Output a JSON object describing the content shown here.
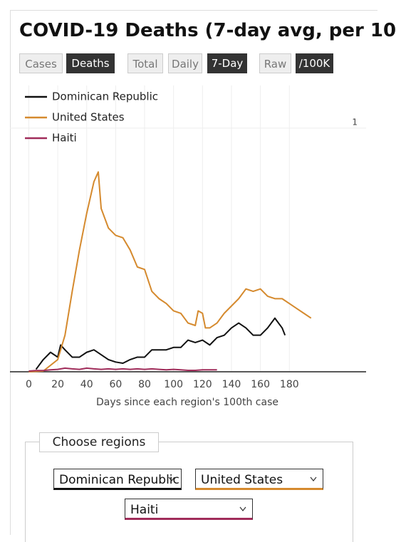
{
  "ui": {
    "buttons": [
      {
        "label": "Cases",
        "active": false
      },
      {
        "label": "Deaths",
        "active": true
      },
      {
        "label": "Total",
        "active": false
      },
      {
        "label": "Daily",
        "active": false
      },
      {
        "label": "7-Day",
        "active": true
      },
      {
        "label": "Raw",
        "active": false
      },
      {
        "label": "/100K",
        "active": true
      }
    ],
    "regions_title": "Choose regions"
  },
  "chart_data": {
    "type": "line",
    "title": "COVID-19 Deaths (7-day avg, per 10",
    "x_label": "Days since each region's 100th case",
    "xlim": [
      -13,
      233
    ],
    "xticks": [
      0,
      20,
      40,
      60,
      80,
      100,
      120,
      140,
      160,
      180
    ],
    "ylim": [
      0,
      1.175
    ],
    "yticks": [
      1
    ],
    "grid": true,
    "legend": "top-left",
    "series": [
      {
        "name": "Dominican Republic",
        "color": "#111111",
        "x": [
          5,
          10,
          15,
          20,
          22,
          25,
          30,
          35,
          40,
          45,
          50,
          55,
          60,
          65,
          70,
          75,
          80,
          85,
          90,
          95,
          100,
          105,
          110,
          115,
          120,
          125,
          130,
          135,
          140,
          145,
          150,
          155,
          160,
          165,
          170,
          175,
          177
        ],
        "values": [
          0.01,
          0.05,
          0.08,
          0.06,
          0.11,
          0.09,
          0.06,
          0.06,
          0.08,
          0.09,
          0.07,
          0.05,
          0.04,
          0.035,
          0.05,
          0.06,
          0.06,
          0.09,
          0.09,
          0.09,
          0.1,
          0.1,
          0.13,
          0.12,
          0.13,
          0.11,
          0.14,
          0.15,
          0.18,
          0.2,
          0.18,
          0.15,
          0.15,
          0.18,
          0.22,
          0.18,
          0.15
        ]
      },
      {
        "name": "United States",
        "color": "#d58a2e",
        "x": [
          0,
          10,
          20,
          25,
          30,
          35,
          40,
          45,
          48,
          50,
          55,
          60,
          65,
          70,
          75,
          80,
          85,
          90,
          95,
          100,
          105,
          110,
          115,
          117,
          120,
          122,
          125,
          130,
          135,
          140,
          145,
          150,
          155,
          160,
          165,
          170,
          175,
          180,
          185,
          190,
          195
        ],
        "values": [
          0,
          0.003,
          0.05,
          0.15,
          0.33,
          0.5,
          0.65,
          0.78,
          0.82,
          0.67,
          0.59,
          0.56,
          0.55,
          0.5,
          0.43,
          0.42,
          0.33,
          0.3,
          0.28,
          0.25,
          0.24,
          0.2,
          0.19,
          0.25,
          0.24,
          0.18,
          0.18,
          0.2,
          0.24,
          0.27,
          0.3,
          0.34,
          0.33,
          0.34,
          0.31,
          0.3,
          0.3,
          0.28,
          0.26,
          0.24,
          0.22
        ]
      },
      {
        "name": "Haiti",
        "color": "#a02c5a",
        "x": [
          0,
          5,
          10,
          15,
          20,
          25,
          30,
          35,
          40,
          45,
          50,
          55,
          60,
          65,
          70,
          75,
          80,
          85,
          90,
          95,
          100,
          105,
          110,
          115,
          120,
          125,
          130
        ],
        "values": [
          0.003,
          0.005,
          0.005,
          0.008,
          0.01,
          0.015,
          0.012,
          0.01,
          0.015,
          0.012,
          0.01,
          0.012,
          0.01,
          0.012,
          0.01,
          0.012,
          0.01,
          0.012,
          0.01,
          0.008,
          0.01,
          0.008,
          0.006,
          0.006,
          0.008,
          0.008,
          0.008
        ]
      }
    ]
  }
}
